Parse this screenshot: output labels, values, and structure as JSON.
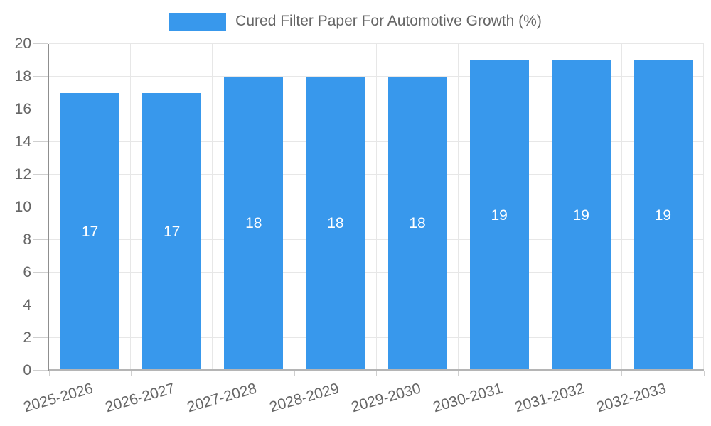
{
  "chart_data": {
    "type": "bar",
    "title": "Cured Filter Paper For Automotive Growth (%)",
    "categories": [
      "2025-2026",
      "2026-2027",
      "2027-2028",
      "2028-2029",
      "2029-2030",
      "2030-2031",
      "2031-2032",
      "2032-2033"
    ],
    "values": [
      17,
      17,
      18,
      18,
      18,
      19,
      19,
      19
    ],
    "data_labels": [
      "17",
      "17",
      "18",
      "18",
      "18",
      "19",
      "19",
      "19"
    ],
    "xlabel": "",
    "ylabel": "",
    "ylim": [
      0,
      20
    ],
    "ytick_step": 2,
    "grid": true,
    "legend_position": "top",
    "colors": {
      "bar": "#3898ec",
      "data_label": "#ffffff",
      "grid_line": "#e7e7e7",
      "axis_line_left": "#8f8f8f",
      "axis_line_bottom": "#b5b5b5",
      "tick_mark": "#cfcfcf",
      "tick_text": "#666666",
      "legend_text": "#666666",
      "background": "#ffffff"
    }
  }
}
